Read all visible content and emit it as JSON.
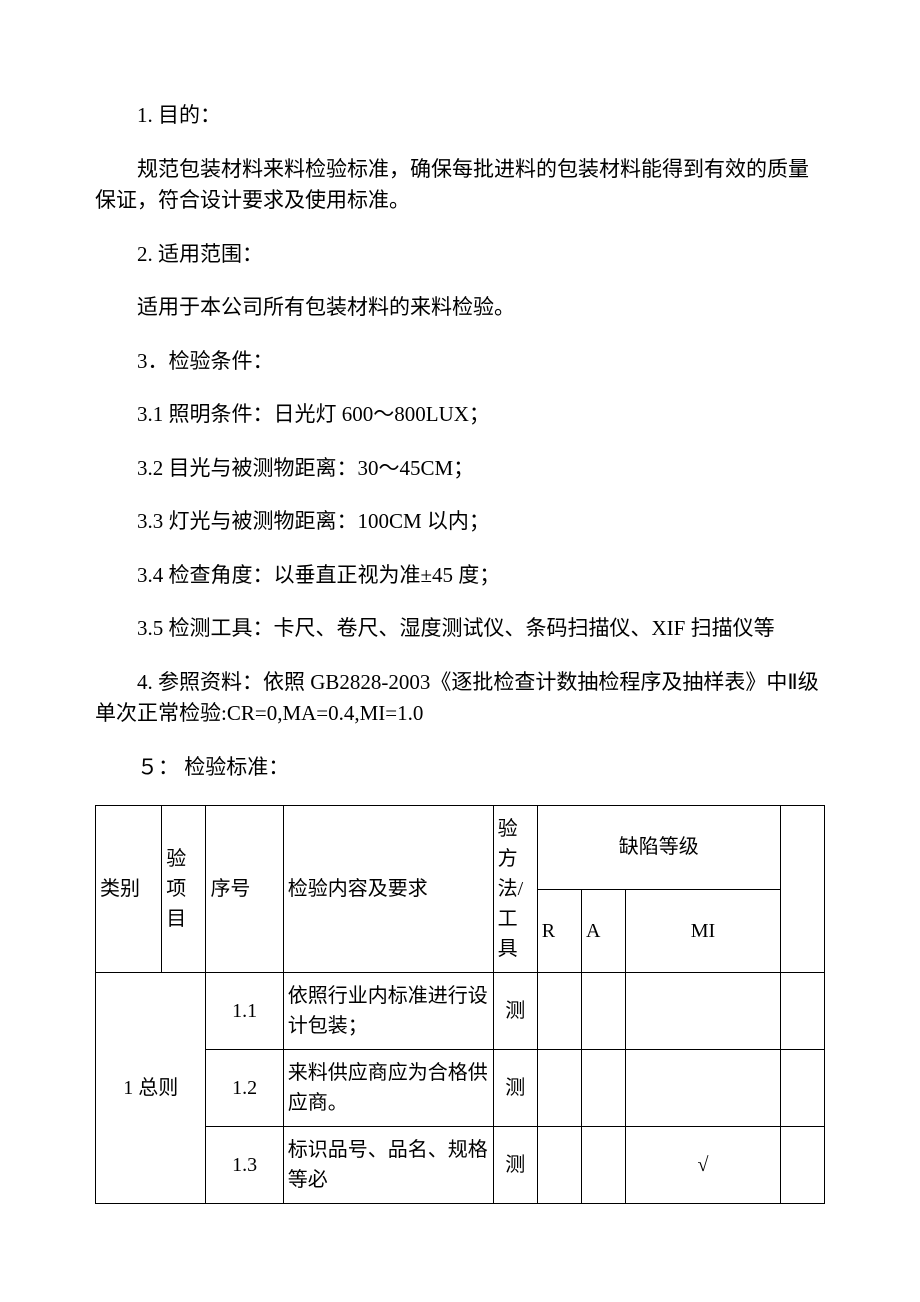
{
  "sections": {
    "s1_title": "1. 目的：",
    "s1_body": "规范包装材料来料检验标准，确保每批进料的包装材料能得到有效的质量保证，符合设计要求及使用标准。",
    "s2_title": "2. 适用范围：",
    "s2_body": "适用于本公司所有包装材料的来料检验。",
    "s3_title": "3．检验条件：",
    "s3_1": "3.1 照明条件：日光灯 600～800LUX；",
    "s3_2": "3.2 目光与被测物距离：30～45CM；",
    "s3_3": "3.3 灯光与被测物距离：100CM 以内；",
    "s3_4": "3.4 检查角度：以垂直正视为准±45 度；",
    "s3_5": "3.5 检测工具：卡尺、卷尺、湿度测试仪、条码扫描仪、XIF 扫描仪等",
    "s4": "4. 参照资料：依照 GB2828-2003《逐批检查计数抽检程序及抽样表》中Ⅱ级单次正常检验:CR=0,MA=0.4,MI=1.0",
    "s5_title": "５： 检验标准："
  },
  "table": {
    "headers": {
      "category": "类别",
      "item": "验项目",
      "seq": "序号",
      "content": "检验内容及要求",
      "method": "验方法/工具",
      "defect_level": "缺陷等级",
      "r": "R",
      "a": "A",
      "mi": "MI"
    },
    "rows": [
      {
        "category": "1 总则",
        "seq": "1.1",
        "content": "依照行业内标准进行设计包装；",
        "method": "测",
        "r": "",
        "a": "",
        "mi": ""
      },
      {
        "seq": "1.2",
        "content": "来料供应商应为合格供应商。",
        "method": "测",
        "r": "",
        "a": "",
        "mi": ""
      },
      {
        "seq": "1.3",
        "content": "标识品号、品名、规格等必",
        "method": "测",
        "r": "",
        "a": "",
        "mi": "√"
      }
    ]
  }
}
